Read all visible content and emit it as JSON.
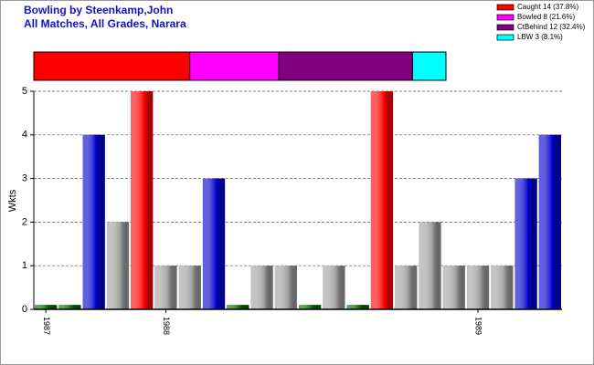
{
  "chart_data": {
    "type": "bar",
    "title": "Bowling by Steenkamp,John",
    "subtitle": "All Matches, All Grades, Narara",
    "ylabel": "Wkts",
    "categories": [
      "1987",
      null,
      null,
      null,
      null,
      "1988",
      null,
      null,
      null,
      null,
      null,
      null,
      null,
      null,
      null,
      null,
      null,
      null,
      "1989",
      null,
      null,
      null
    ],
    "values": [
      0.1,
      0.1,
      4,
      2,
      5,
      1,
      1,
      3,
      0.1,
      1,
      1,
      0.1,
      1,
      0.1,
      5,
      1,
      2,
      1,
      1,
      1,
      3,
      4
    ],
    "colors": [
      "#006400",
      "#006400",
      "#0000cc",
      "#a0a0a0",
      "#ff0000",
      "#a0a0a0",
      "#a0a0a0",
      "#0000cc",
      "#006400",
      "#a0a0a0",
      "#a0a0a0",
      "#006400",
      "#a0a0a0",
      "#006400",
      "#ff0000",
      "#a0a0a0",
      "#a0a0a0",
      "#a0a0a0",
      "#a0a0a0",
      "#a0a0a0",
      "#0000cc",
      "#0000cc"
    ],
    "ylim": [
      0,
      5
    ],
    "yticks": [
      0,
      1,
      2,
      3,
      4,
      5
    ],
    "grid": true,
    "breakdown": {
      "labels": [
        "Caught 14 (37.8%)",
        "Bowled 8 (21.6%)",
        "CtBehind 12 (32.4%)",
        "LBW 3 (8.1%)"
      ],
      "values": [
        14,
        8,
        12,
        3
      ],
      "colors": [
        "#ff0000",
        "#ff00ff",
        "#800080",
        "#00ffff"
      ]
    }
  }
}
